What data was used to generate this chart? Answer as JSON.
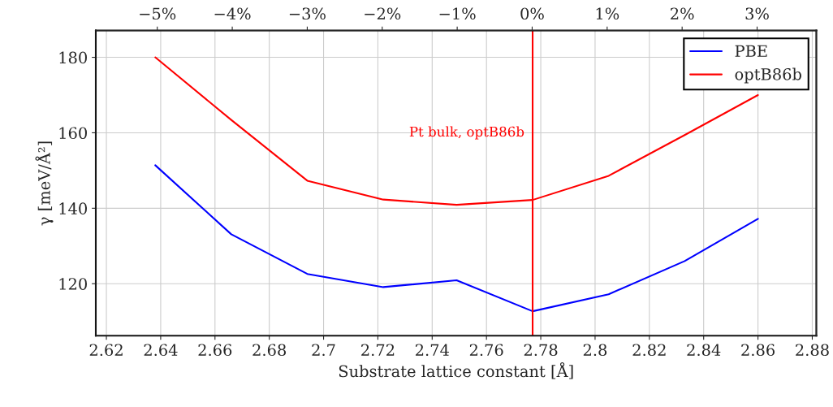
{
  "chart_data": {
    "type": "line",
    "xlabel": "Substrate lattice constant [Å]",
    "ylabel": "γ [meV/Å²]",
    "x": [
      2.638,
      2.666,
      2.694,
      2.722,
      2.749,
      2.777,
      2.805,
      2.833,
      2.86
    ],
    "series": [
      {
        "name": "PBE",
        "color": "#0000ff",
        "values": [
          151.4,
          133.1,
          122.6,
          119.1,
          120.9,
          112.7,
          117.2,
          126.0,
          137.2
        ]
      },
      {
        "name": "optB86b",
        "color": "#ff0000",
        "values": [
          180.0,
          163.4,
          147.3,
          142.3,
          140.9,
          142.2,
          148.6,
          159.4,
          170.0
        ]
      }
    ],
    "xlim": [
      2.6161,
      2.8815
    ],
    "xticks": [
      2.62,
      2.64,
      2.66,
      2.68,
      2.7,
      2.72,
      2.74,
      2.76,
      2.78,
      2.8,
      2.82,
      2.84,
      2.86,
      2.88
    ],
    "ylim": [
      106.2,
      187.1
    ],
    "yticks": [
      120,
      140,
      160,
      180
    ],
    "x2lim": [
      -5.82,
      3.79
    ],
    "x2ticks": [
      {
        "value": -5,
        "label": "−5%"
      },
      {
        "value": -4,
        "label": "−4%"
      },
      {
        "value": -3,
        "label": "−3%"
      },
      {
        "value": -2,
        "label": "−2%"
      },
      {
        "value": -1,
        "label": "−1%"
      },
      {
        "value": 0,
        "label": "0%"
      },
      {
        "value": 1,
        "label": "1%"
      },
      {
        "value": 2,
        "label": "2%"
      },
      {
        "value": 3,
        "label": "3%"
      }
    ],
    "ref_lines": [
      {
        "axis": "x",
        "value": 2.777,
        "label": "Pt bulk, optB86b",
        "color": "#ff0000"
      }
    ],
    "grid": true,
    "legend": "top right",
    "marker": "none",
    "line_style": "solid"
  }
}
